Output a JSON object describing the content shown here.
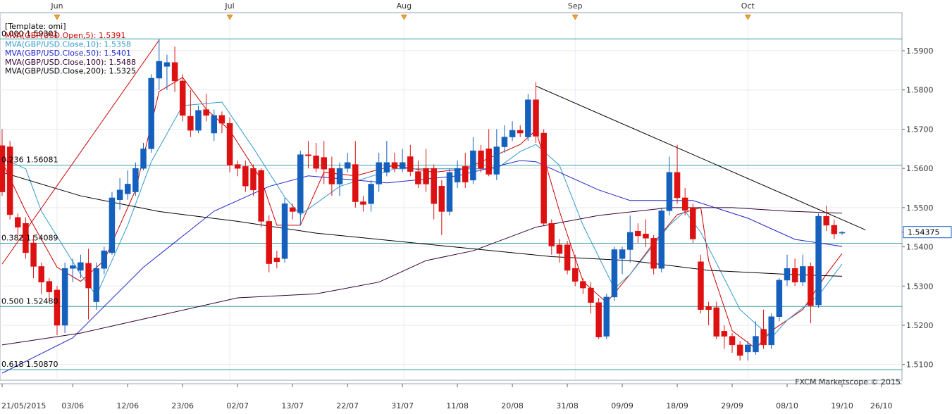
{
  "chart_data": {
    "type": "candlestick",
    "template": "[Template: omi]",
    "watermark": "FXCM Marketscope © 2015",
    "categories": [
      "21/05/2015",
      null,
      null,
      null,
      null,
      null,
      null,
      null,
      null,
      "03/06",
      null,
      null,
      null,
      null,
      null,
      null,
      "12/06",
      null,
      null,
      null,
      null,
      null,
      null,
      "23/06",
      null,
      null,
      null,
      null,
      null,
      null,
      "02/07",
      null,
      null,
      null,
      null,
      null,
      null,
      "13/07",
      null,
      null,
      null,
      null,
      null,
      null,
      "22/07",
      null,
      null,
      null,
      null,
      null,
      null,
      "31/07",
      null,
      null,
      null,
      null,
      null,
      null,
      "11/08",
      null,
      null,
      null,
      null,
      null,
      null,
      "20/08",
      null,
      null,
      null,
      null,
      null,
      null,
      "31/08",
      null,
      null,
      null,
      null,
      null,
      null,
      "09/09",
      null,
      null,
      null,
      null,
      null,
      null,
      "18/09",
      null,
      null,
      null,
      null,
      null,
      null,
      "29/09",
      null,
      null,
      null,
      null,
      null,
      null,
      "08/10",
      null,
      null,
      null,
      null,
      null,
      null,
      "19/10",
      null,
      null,
      null,
      null,
      "26/10"
    ],
    "open": [
      1.5658,
      1.5655,
      1.5475,
      1.546,
      1.541,
      1.535,
      1.5312,
      1.529,
      1.52,
      1.5345,
      1.534,
      1.5358,
      1.526,
      1.5345,
      1.5385,
      1.552,
      1.5535,
      1.554,
      1.56,
      1.565,
      1.583,
      1.586,
      1.587,
      1.5823,
      1.5733,
      1.5697,
      1.575,
      1.569,
      1.5735,
      1.5715,
      1.561,
      1.5605,
      1.56,
      1.5595,
      1.5465,
      1.5372,
      1.537,
      1.55,
      1.5487,
      1.5635,
      1.5632,
      1.5628,
      1.56,
      1.556,
      1.56,
      1.561,
      1.5515,
      1.551,
      1.556,
      1.559,
      1.5615,
      1.56,
      1.563,
      1.5592,
      1.56,
      1.56,
      1.5555,
      1.549,
      1.5565,
      1.5605,
      1.557,
      1.5645,
      1.565,
      1.5585,
      1.5655,
      1.568,
      1.5697,
      1.568,
      1.5775,
      1.569,
      1.546,
      1.5405,
      1.5405,
      1.5345,
      1.5312,
      1.5295,
      1.5258,
      1.5172,
      1.5272,
      1.537,
      1.5393,
      1.544,
      1.5433,
      1.5422,
      1.5345,
      1.5492,
      1.559,
      1.5525,
      1.55,
      1.5362,
      1.5248,
      1.5245,
      1.5185,
      1.5172,
      1.515,
      1.5132,
      1.5132,
      1.519,
      1.515,
      1.5222,
      1.5315,
      1.5345,
      1.531,
      1.535,
      1.5252,
      1.5478,
      1.5455,
      1.5435,
      null,
      null,
      null,
      null,
      null
    ],
    "high": [
      1.57,
      1.567,
      1.5485,
      1.5475,
      1.543,
      1.536,
      1.532,
      1.53,
      1.536,
      1.537,
      1.538,
      1.5395,
      1.536,
      1.54,
      1.554,
      1.5575,
      1.5595,
      1.5615,
      1.5665,
      1.584,
      1.593,
      1.589,
      1.591,
      1.584,
      1.58,
      1.576,
      1.579,
      1.575,
      1.5745,
      1.573,
      1.562,
      1.562,
      1.561,
      1.56,
      1.548,
      1.539,
      1.5525,
      1.551,
      1.5645,
      1.567,
      1.5665,
      1.567,
      1.563,
      1.5615,
      1.564,
      1.567,
      1.553,
      1.557,
      1.564,
      1.567,
      1.564,
      1.565,
      1.566,
      1.562,
      1.565,
      1.561,
      1.557,
      1.56,
      1.562,
      1.564,
      1.568,
      1.566,
      1.57,
      1.57,
      1.571,
      1.572,
      1.571,
      1.579,
      1.582,
      1.57,
      1.547,
      1.542,
      1.5415,
      1.538,
      1.532,
      1.531,
      1.527,
      1.528,
      1.54,
      1.54,
      1.548,
      1.546,
      1.547,
      1.543,
      1.55,
      1.563,
      1.566,
      1.555,
      1.551,
      1.538,
      1.526,
      1.526,
      1.52,
      1.518,
      1.516,
      1.516,
      1.521,
      1.524,
      1.523,
      1.532,
      1.538,
      1.537,
      1.538,
      1.536,
      1.5485,
      1.5505,
      1.547,
      1.544,
      null,
      null,
      null,
      null,
      null
    ],
    "low": [
      1.553,
      1.547,
      1.543,
      1.537,
      1.532,
      1.528,
      1.526,
      1.5175,
      1.518,
      1.531,
      1.532,
      1.5215,
      1.524,
      1.533,
      1.538,
      1.5495,
      1.552,
      1.553,
      1.5595,
      1.564,
      1.58,
      1.58,
      1.5795,
      1.572,
      1.568,
      1.569,
      1.572,
      1.567,
      1.569,
      1.559,
      1.558,
      1.554,
      1.553,
      1.545,
      1.5335,
      1.5345,
      1.536,
      1.547,
      1.5455,
      1.56,
      1.559,
      1.556,
      1.553,
      1.553,
      1.559,
      1.55,
      1.549,
      1.549,
      1.554,
      1.558,
      1.559,
      1.559,
      1.558,
      1.555,
      1.554,
      1.547,
      1.543,
      1.548,
      1.555,
      1.555,
      1.556,
      1.559,
      1.558,
      1.557,
      1.564,
      1.567,
      1.568,
      1.567,
      1.5665,
      1.5455,
      1.538,
      1.536,
      1.533,
      1.53,
      1.528,
      1.523,
      1.5165,
      1.5165,
      1.5262,
      1.533,
      1.536,
      1.541,
      1.54,
      1.533,
      1.5335,
      1.548,
      1.551,
      1.548,
      1.541,
      1.523,
      1.52,
      1.5165,
      1.514,
      1.513,
      1.511,
      1.511,
      1.5125,
      1.514,
      1.514,
      1.521,
      1.53,
      1.53,
      1.53,
      1.5205,
      1.5245,
      1.544,
      1.542,
      1.543,
      null,
      null,
      null,
      null,
      null
    ],
    "close": [
      1.554,
      1.5482,
      1.545,
      1.5385,
      1.535,
      1.531,
      1.5285,
      1.52,
      1.5345,
      1.5352,
      1.536,
      1.5295,
      1.5345,
      1.539,
      1.5525,
      1.5545,
      1.556,
      1.56,
      1.565,
      1.583,
      1.5873,
      1.587,
      1.5823,
      1.5735,
      1.5697,
      1.5748,
      1.5735,
      1.5735,
      1.5715,
      1.5608,
      1.56,
      1.5555,
      1.5545,
      1.5465,
      1.5357,
      1.5362,
      1.551,
      1.549,
      1.5635,
      1.5632,
      1.56,
      1.5598,
      1.556,
      1.56,
      1.5615,
      1.5515,
      1.5508,
      1.556,
      1.5615,
      1.5615,
      1.56,
      1.5615,
      1.5592,
      1.556,
      1.556,
      1.551,
      1.549,
      1.559,
      1.56,
      1.5565,
      1.5645,
      1.56,
      1.5585,
      1.5655,
      1.568,
      1.5697,
      1.569,
      1.5775,
      1.5682,
      1.546,
      1.5402,
      1.5383,
      1.534,
      1.5312,
      1.5295,
      1.5258,
      1.517,
      1.5272,
      1.5393,
      1.5393,
      1.5437,
      1.5428,
      1.5422,
      1.5345,
      1.5492,
      1.559,
      1.5525,
      1.5493,
      1.542,
      1.524,
      1.524,
      1.5172,
      1.5172,
      1.515,
      1.5123,
      1.515,
      1.5172,
      1.515,
      1.5222,
      1.5315,
      1.5345,
      1.531,
      1.535,
      1.525,
      1.5478,
      1.5455,
      1.5433,
      1.5437,
      null,
      null,
      null,
      null,
      null
    ],
    "up_color": "#1560bd",
    "down_color": "#dd1111",
    "ma_lines": [
      {
        "name": "MVA(GBP/USD.Open,5): 1.5391",
        "color": "#cc0000",
        "x": [
          0,
          3,
          7,
          10,
          13,
          17,
          20,
          23,
          26,
          29,
          33,
          35,
          38,
          41,
          45,
          50,
          55,
          59,
          62,
          66,
          68,
          71,
          74,
          77,
          80,
          83,
          86,
          89,
          90,
          93,
          96,
          98,
          102,
          105,
          107
        ],
        "values": [
          1.5617,
          1.5491,
          1.5348,
          1.5312,
          1.5365,
          1.5545,
          1.5796,
          1.5832,
          1.5751,
          1.5697,
          1.5572,
          1.5455,
          1.5455,
          1.559,
          1.5581,
          1.5608,
          1.559,
          1.5599,
          1.5626,
          1.5661,
          1.5697,
          1.5491,
          1.5312,
          1.5258,
          1.533,
          1.541,
          1.5482,
          1.55,
          1.5365,
          1.5186,
          1.5141,
          1.5186,
          1.524,
          1.533,
          1.5383
        ]
      },
      {
        "name": "MVA(GBP/USD.Close,10): 1.5358",
        "color": "#3399cc",
        "x": [
          0,
          3,
          5,
          10,
          12,
          16,
          19,
          23,
          28,
          32,
          36,
          38,
          43,
          50,
          57,
          63,
          66,
          68,
          71,
          74,
          78,
          80,
          85,
          87,
          89,
          94,
          98,
          100,
          104,
          107
        ],
        "values": [
          1.5626,
          1.5599,
          1.5491,
          1.533,
          1.5276,
          1.5455,
          1.5617,
          1.576,
          1.5769,
          1.5652,
          1.5527,
          1.5482,
          1.5554,
          1.5599,
          1.5599,
          1.5599,
          1.5643,
          1.5661,
          1.5608,
          1.5455,
          1.5294,
          1.533,
          1.5455,
          1.5491,
          1.5437,
          1.524,
          1.5168,
          1.5213,
          1.5276,
          1.5356
        ]
      },
      {
        "name": "MVA(GBP/USD.Close,50): 1.5401",
        "color": "#2222cc",
        "x": [
          0,
          9,
          18,
          27,
          34,
          39,
          49,
          58,
          66,
          68,
          72,
          76,
          80,
          88,
          95,
          101,
          107
        ],
        "values": [
          1.5078,
          1.5168,
          1.5348,
          1.5491,
          1.5554,
          1.5581,
          1.5563,
          1.5581,
          1.562,
          1.5617,
          1.5581,
          1.5545,
          1.5518,
          1.5518,
          1.5473,
          1.5419,
          1.5401
        ]
      },
      {
        "name": "MVA(GBP/USD.Close,100): 1.5488",
        "color": "#330033",
        "x": [
          0,
          10,
          20,
          30,
          40,
          48,
          54,
          60,
          68,
          76,
          85,
          93,
          100,
          107
        ],
        "values": [
          1.515,
          1.518,
          1.5225,
          1.527,
          1.528,
          1.531,
          1.5365,
          1.539,
          1.545,
          1.548,
          1.55,
          1.55,
          1.5491,
          1.5486
        ]
      },
      {
        "name": "MVA(GBP/USD.Close,200): 1.5325",
        "color": "#000000",
        "x": [
          0,
          10,
          20,
          30,
          40,
          50,
          60,
          70,
          80,
          90,
          100,
          107
        ],
        "values": [
          1.559,
          1.553,
          1.549,
          1.5465,
          1.5435,
          1.5415,
          1.5395,
          1.5375,
          1.5365,
          1.534,
          1.533,
          1.5325
        ]
      }
    ],
    "trend_lines": [
      {
        "color": "#cc0000",
        "x": [
          0,
          20
        ],
        "values": [
          1.5356,
          1.5927
        ]
      },
      {
        "color": "#000000",
        "x": [
          68,
          110
        ],
        "values": [
          1.581,
          1.5443
        ]
      }
    ],
    "fib_levels": [
      {
        "label": "0.000 1.59301",
        "value": 1.59301
      },
      {
        "label": "0.236 1.56081",
        "value": 1.56081
      },
      {
        "label": "0.382 1.54089",
        "value": 1.54089
      },
      {
        "label": "0.500 1.52480",
        "value": 1.5248
      },
      {
        "label": "0.618 1.50870",
        "value": 1.5087
      }
    ],
    "fib_color": "#3aa0a0",
    "last_price": 1.54375,
    "months": {
      "labels": [
        "Jun",
        "Jul",
        "Aug",
        "Sep",
        "Oct"
      ],
      "x": [
        7,
        29,
        51.2,
        73,
        95
      ]
    },
    "ylim": [
      1.506,
      1.5997
    ],
    "yticks": [
      {
        "value": 1.51,
        "label": "1.5100"
      },
      {
        "value": 1.52,
        "label": "1.5200"
      },
      {
        "value": 1.53,
        "label": "1.5300"
      },
      {
        "value": 1.54,
        "label": "1.5400"
      },
      {
        "value": 1.55,
        "label": "1.5500"
      },
      {
        "value": 1.56,
        "label": "1.5600"
      },
      {
        "value": 1.57,
        "label": "1.5700"
      },
      {
        "value": 1.58,
        "label": "1.5800"
      },
      {
        "value": 1.59,
        "label": "1.5900"
      }
    ],
    "grid": true
  }
}
